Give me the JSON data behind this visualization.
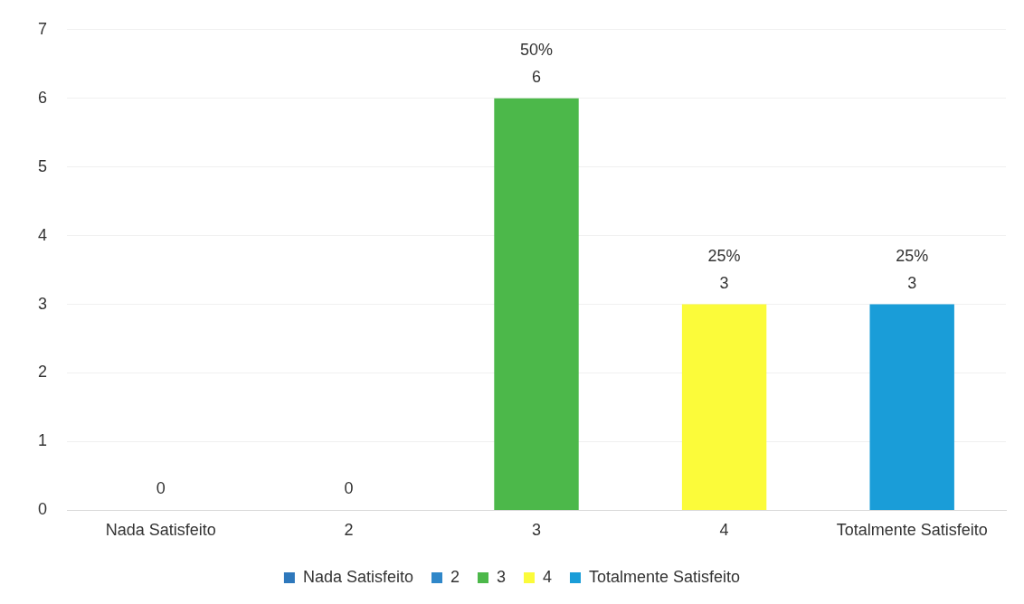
{
  "chart_data": {
    "type": "bar",
    "categories": [
      "Nada Satisfeito",
      "2",
      "3",
      "4",
      "Totalmente Satisfeito"
    ],
    "series": [
      {
        "name": "Nada Satisfeito",
        "color": "#2e78bc",
        "values": [
          0,
          null,
          null,
          null,
          null
        ],
        "value_labels": [
          "0",
          null,
          null,
          null,
          null
        ]
      },
      {
        "name": "2",
        "color": "#2f87c9",
        "values": [
          null,
          0,
          null,
          null,
          null
        ],
        "value_labels": [
          null,
          "0",
          null,
          null,
          null
        ]
      },
      {
        "name": "3",
        "color": "#4cb84a",
        "values": [
          null,
          null,
          6,
          null,
          null
        ],
        "value_labels": [
          null,
          null,
          "50%\n6",
          null,
          null
        ]
      },
      {
        "name": "4",
        "color": "#fbfb3a",
        "values": [
          null,
          null,
          null,
          3,
          null
        ],
        "value_labels": [
          null,
          null,
          null,
          "25%\n3",
          null
        ]
      },
      {
        "name": "Totalmente Satisfeito",
        "color": "#1a9dd8",
        "values": [
          null,
          null,
          null,
          null,
          3
        ],
        "value_labels": [
          null,
          null,
          null,
          null,
          "25%\n3"
        ]
      }
    ],
    "ylim": [
      0,
      7
    ],
    "yticks": [
      0,
      1,
      2,
      3,
      4,
      5,
      6,
      7
    ],
    "grid": "y",
    "legend": "bottom"
  }
}
